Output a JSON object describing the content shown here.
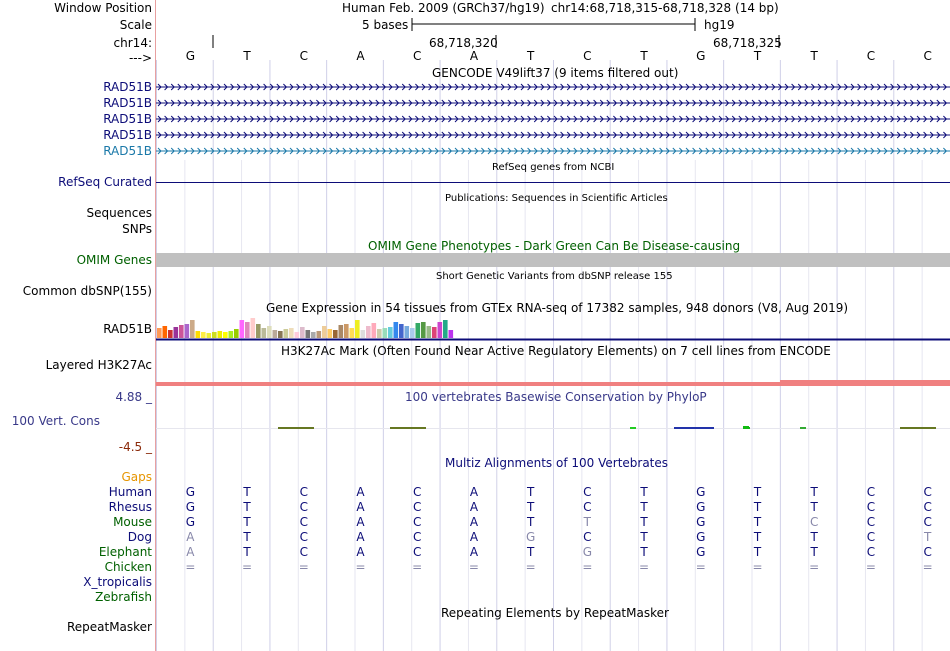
{
  "labels": {
    "window_position": "Window Position",
    "scale": "Scale",
    "chrom": "chr14:",
    "arrow": "--->",
    "gencode_rows": [
      "RAD51B",
      "RAD51B",
      "RAD51B",
      "RAD51B",
      "RAD51B"
    ],
    "refseq": "RefSeq Curated",
    "sequences": "Sequences",
    "snps": "SNPs",
    "omim": "OMIM Genes",
    "common_dbsnp": "Common dbSNP(155)",
    "gtex": "RAD51B",
    "h3k27ac": "Layered H3K27Ac",
    "phylop_max": "4.88 _",
    "phylop_name": "100 Vert. Cons",
    "phylop_min": "-4.5 _",
    "gaps": "Gaps",
    "species": [
      "Human",
      "Rhesus",
      "Mouse",
      "Dog",
      "Elephant",
      "Chicken",
      "X_tropicalis",
      "Zebrafish"
    ],
    "repeatmasker": "RepeatMasker"
  },
  "ruler": {
    "assembly": "Human Feb. 2009 (GRCh37/hg19)",
    "position": "chr14:68,718,315-68,718,328 (14 bp)",
    "scale_text": "5 bases",
    "scale_db": "hg19",
    "coord1": "68,718,320",
    "coord2": "68,718,325"
  },
  "sequence": [
    "G",
    "T",
    "C",
    "A",
    "C",
    "A",
    "T",
    "C",
    "T",
    "G",
    "T",
    "T",
    "C",
    "C"
  ],
  "track_titles": {
    "gencode": "GENCODE V49lift37 (9 items filtered out)",
    "refseq": "RefSeq genes from NCBI",
    "publications": "Publications: Sequences in Scientific Articles",
    "omim": "OMIM Gene Phenotypes - Dark Green Can Be Disease-causing",
    "dbsnp": "Short Genetic Variants from dbSNP release 155",
    "gtex": "Gene Expression in 54 tissues from GTEx RNA-seq of 17382 samples, 948 donors (V8, Aug 2019)",
    "h3k27ac": "H3K27Ac Mark (Often Found Near Active Regulatory Elements) on 7 cell lines from ENCODE",
    "phylop": "100 vertebrates Basewise Conservation by PhyloP",
    "multiz": "Multiz Alignments of 100 Vertebrates",
    "repeatmasker": "Repeating Elements by RepeatMasker"
  },
  "alignment": [
    {
      "species": "Human",
      "bases": [
        "G",
        "T",
        "C",
        "A",
        "C",
        "A",
        "T",
        "C",
        "T",
        "G",
        "T",
        "T",
        "C",
        "C"
      ]
    },
    {
      "species": "Rhesus",
      "bases": [
        "G",
        "T",
        "C",
        "A",
        "C",
        "A",
        "T",
        "C",
        "T",
        "G",
        "T",
        "T",
        "C",
        "C"
      ]
    },
    {
      "species": "Mouse",
      "bases": [
        "G",
        "T",
        "C",
        "A",
        "C",
        "A",
        "T",
        "T",
        "T",
        "G",
        "T",
        "C",
        "C",
        "C"
      ]
    },
    {
      "species": "Dog",
      "bases": [
        "A",
        "T",
        "C",
        "A",
        "C",
        "A",
        "G",
        "C",
        "T",
        "G",
        "T",
        "T",
        "C",
        "T"
      ]
    },
    {
      "species": "Elephant",
      "bases": [
        "A",
        "T",
        "C",
        "A",
        "C",
        "A",
        "T",
        "G",
        "T",
        "G",
        "T",
        "T",
        "C",
        "C"
      ]
    },
    {
      "species": "Chicken",
      "bases": [
        "=",
        "=",
        "=",
        "=",
        "=",
        "=",
        "=",
        "=",
        "=",
        "=",
        "=",
        "=",
        "=",
        "="
      ]
    }
  ],
  "gtex_colors": [
    "#ff9955",
    "#ff6600",
    "#cc3333",
    "#993399",
    "#cc5599",
    "#aa66cc",
    "#ccaa88",
    "#ffdd00",
    "#ffee44",
    "#eeee33",
    "#ccdd22",
    "#eeee00",
    "#ffff00",
    "#aaee22",
    "#99cc00",
    "#ff66ff",
    "#dd88bb",
    "#ffcccc",
    "#999966",
    "#bbbb99",
    "#ddddbb",
    "#bbaa99",
    "#887755",
    "#cccc99",
    "#eeddbb",
    "#ffccdd",
    "#ddbbcc",
    "#777777",
    "#aaaaaa",
    "#bb9977",
    "#eecc99",
    "#ffcc66",
    "#996633",
    "#aa8866",
    "#cc9966",
    "#ffdd55",
    "#eeee22",
    "#dddddd",
    "#eebbcc",
    "#ffaabb",
    "#ccccaa",
    "#99ddbb",
    "#66ccdd",
    "#3388ee",
    "#4466cc",
    "#77aadd",
    "#aaccee",
    "#33aa66",
    "#559944",
    "#99bb88",
    "#dd4477",
    "#cc44cc",
    "#22aa88",
    "#bb33ee"
  ],
  "gtex_levels": [
    0.5,
    0.6,
    0.4,
    0.55,
    0.65,
    0.7,
    0.9,
    0.35,
    0.3,
    0.25,
    0.3,
    0.35,
    0.3,
    0.35,
    0.45,
    0.9,
    0.8,
    1.0,
    0.7,
    0.5,
    0.6,
    0.4,
    0.35,
    0.45,
    0.5,
    0.3,
    0.55,
    0.4,
    0.3,
    0.35,
    0.6,
    0.45,
    0.4,
    0.65,
    0.7,
    0.5,
    0.9,
    0.4,
    0.6,
    0.75,
    0.45,
    0.5,
    0.55,
    0.8,
    0.7,
    0.6,
    0.5,
    0.75,
    0.8,
    0.6,
    0.55,
    0.8,
    0.9,
    0.4
  ],
  "colors": {
    "gene_blue": "#0c0c78",
    "gene_light": "#1a78a8",
    "omim_gray": "#c0c0c0",
    "omim_green": "#006000",
    "phylop_blue": "#383888",
    "phylop_red": "#8b2a0a",
    "h3k27ac_red": "#f08080",
    "gaps_orange": "#e69500",
    "multiz_blue": "#0c0c78",
    "grid": "#d0d0e8"
  }
}
